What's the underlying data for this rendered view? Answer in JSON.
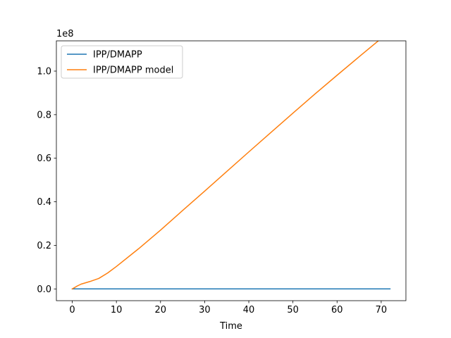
{
  "chart_data": {
    "type": "line",
    "xlabel": "Time",
    "ylabel": "",
    "y_scale_label": "1e8",
    "xlim": [
      -3.6,
      75.6
    ],
    "ylim": [
      -5.4,
      113.9
    ],
    "y_unit_multiplier": "1e8",
    "x_ticks": [
      0,
      10,
      20,
      30,
      40,
      50,
      60,
      70
    ],
    "x_tick_labels": [
      "0",
      "10",
      "20",
      "30",
      "40",
      "50",
      "60",
      "70"
    ],
    "y_ticks": [
      0,
      20,
      40,
      60,
      80,
      100
    ],
    "y_tick_labels": [
      "0.0",
      "0.2",
      "0.4",
      "0.6",
      "0.8",
      "1.0"
    ],
    "legend_position": "top-left",
    "grid": false,
    "series": [
      {
        "name": "IPP/DMAPP",
        "color": "#1f77b4",
        "x": [
          0,
          72
        ],
        "y": [
          0,
          0
        ]
      },
      {
        "name": "IPP/DMAPP model",
        "color": "#ff7f0e",
        "x": [
          0,
          1,
          2,
          4,
          6,
          8,
          10,
          15,
          20,
          25,
          30,
          35,
          40,
          45,
          50,
          55,
          60,
          65,
          70,
          72
        ],
        "y": [
          0,
          1.2,
          2.2,
          3.4,
          4.8,
          7.3,
          10.3,
          18.4,
          27.0,
          36.0,
          44.9,
          53.9,
          62.9,
          71.8,
          80.7,
          89.5,
          98.1,
          106.6,
          115.0,
          118.3
        ]
      }
    ]
  }
}
